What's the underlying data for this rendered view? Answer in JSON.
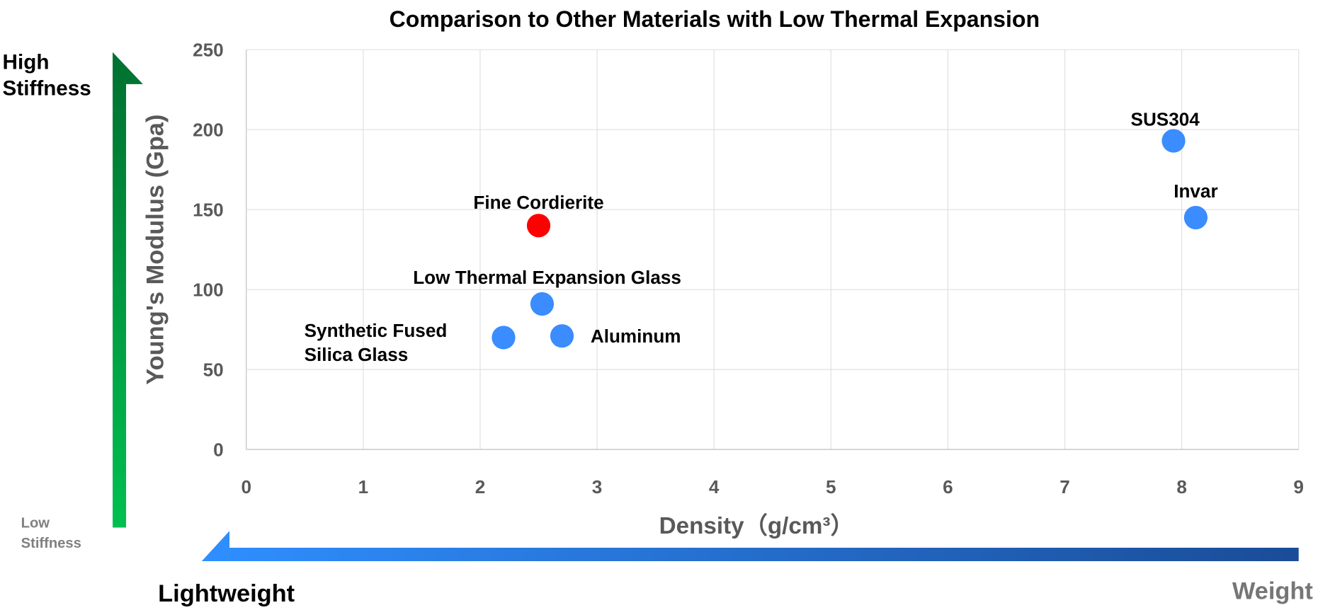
{
  "chart_data": {
    "type": "scatter",
    "title": "Comparison to Other Materials with Low Thermal Expansion",
    "xlabel": "Density（g/cm³）",
    "ylabel": "Young's Modulus (Gpa)",
    "xlim": [
      0,
      9
    ],
    "ylim": [
      0,
      250
    ],
    "xticks": [
      "0",
      "1",
      "2",
      "3",
      "4",
      "5",
      "6",
      "7",
      "8",
      "9"
    ],
    "yticks": [
      "0",
      "50",
      "100",
      "150",
      "200",
      "250"
    ],
    "grid": true,
    "points": [
      {
        "label": "Fine Cordierite",
        "x": 2.5,
        "y": 140,
        "color": "#ff0000"
      },
      {
        "label": "SUS304",
        "x": 7.93,
        "y": 193,
        "color": "#3a8cff"
      },
      {
        "label": "Invar",
        "x": 8.12,
        "y": 145,
        "color": "#3a8cff"
      },
      {
        "label": "Low Thermal Expansion Glass",
        "x": 2.53,
        "y": 91,
        "color": "#3a8cff"
      },
      {
        "label": "Synthetic Fused Silica Glass",
        "x": 2.2,
        "y": 70,
        "color": "#3a8cff"
      },
      {
        "label": "Aluminum",
        "x": 2.7,
        "y": 71,
        "color": "#3a8cff"
      }
    ]
  },
  "annotations": {
    "high_stiffness": [
      "High",
      "Stiffness"
    ],
    "low_stiffness": [
      "Low",
      "Stiffness"
    ],
    "lightweight": "Lightweight",
    "weight": "Weight"
  }
}
